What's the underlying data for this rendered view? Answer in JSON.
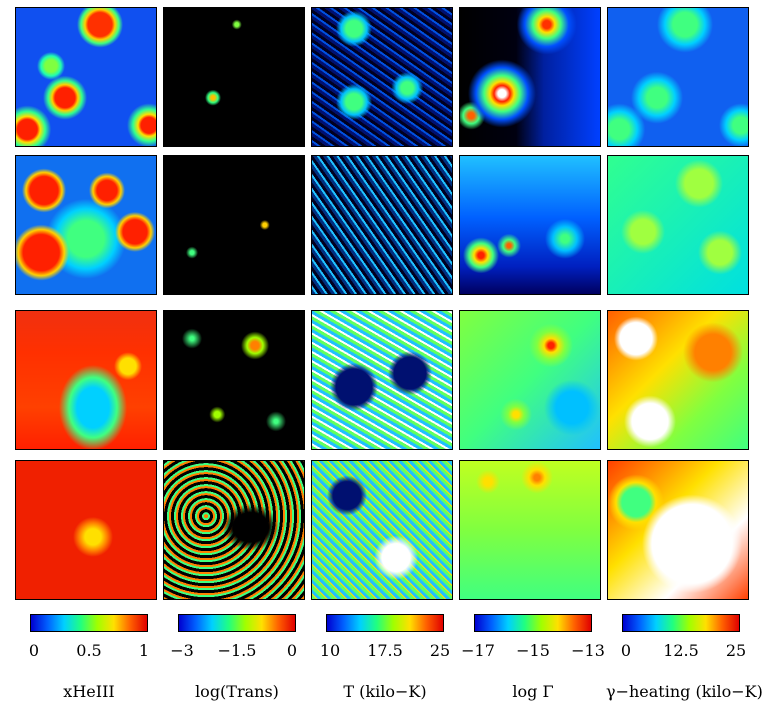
{
  "figure": {
    "columns": [
      {
        "key": "xHeIII",
        "label": "xHeIII",
        "ticks": [
          "0",
          "0.5",
          "1"
        ]
      },
      {
        "key": "trans",
        "label": "log(Trans)",
        "ticks": [
          "−3",
          "−1.5",
          "0"
        ]
      },
      {
        "key": "temp",
        "label": "T (kilo−K)",
        "ticks": [
          "10",
          "17.5",
          "25"
        ]
      },
      {
        "key": "gamma",
        "label": "log Γ",
        "ticks": [
          "−17",
          "−15",
          "−13"
        ]
      },
      {
        "key": "heating",
        "label": "γ−heating (kilo−K)",
        "ticks": [
          "0",
          "12.5",
          "25"
        ]
      }
    ],
    "rows": 4,
    "colormap": [
      "#0000d0",
      "#0060ff",
      "#00d0ff",
      "#20ff80",
      "#a0ff00",
      "#ffe000",
      "#ff6000",
      "#e00000"
    ]
  }
}
